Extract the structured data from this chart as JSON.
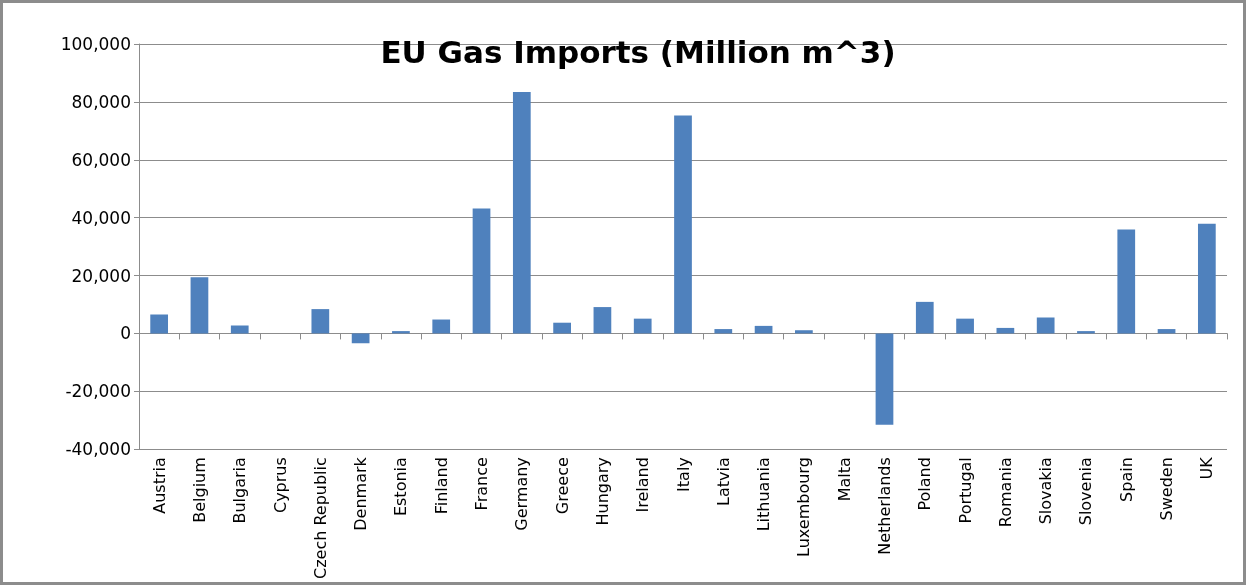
{
  "chart_data": {
    "type": "bar",
    "title": "EU Gas Imports (Million m^3)",
    "categories": [
      "Austria",
      "Belgium",
      "Bulgaria",
      "Cyprus",
      "Czech Republic",
      "Denmark",
      "Estonia",
      "Finland",
      "France",
      "Germany",
      "Greece",
      "Hungary",
      "Ireland",
      "Italy",
      "Latvia",
      "Lithuania",
      "Luxembourg",
      "Malta",
      "Netherlands",
      "Poland",
      "Portugal",
      "Romania",
      "Slovakia",
      "Slovenia",
      "Spain",
      "Sweden",
      "UK"
    ],
    "values": [
      6500,
      19400,
      2700,
      0,
      8400,
      -3400,
      800,
      4800,
      43200,
      83400,
      3700,
      9100,
      5100,
      75300,
      1500,
      2600,
      1100,
      0,
      -31600,
      10900,
      5100,
      1900,
      5500,
      800,
      35900,
      1500,
      37900
    ],
    "color": "#4f81bd",
    "ylim": [
      -40000,
      100000
    ],
    "yticks": [
      {
        "value": -40000,
        "label": "-40,000"
      },
      {
        "value": -20000,
        "label": "-20,000"
      },
      0,
      {
        "value": 20000,
        "label": "20,000"
      },
      {
        "value": 40000,
        "label": "40,000"
      },
      {
        "value": 60000,
        "label": "60,000"
      },
      {
        "value": 80000,
        "label": "80,000"
      },
      {
        "value": 100000,
        "label": "100,000"
      }
    ],
    "grid": "y"
  }
}
